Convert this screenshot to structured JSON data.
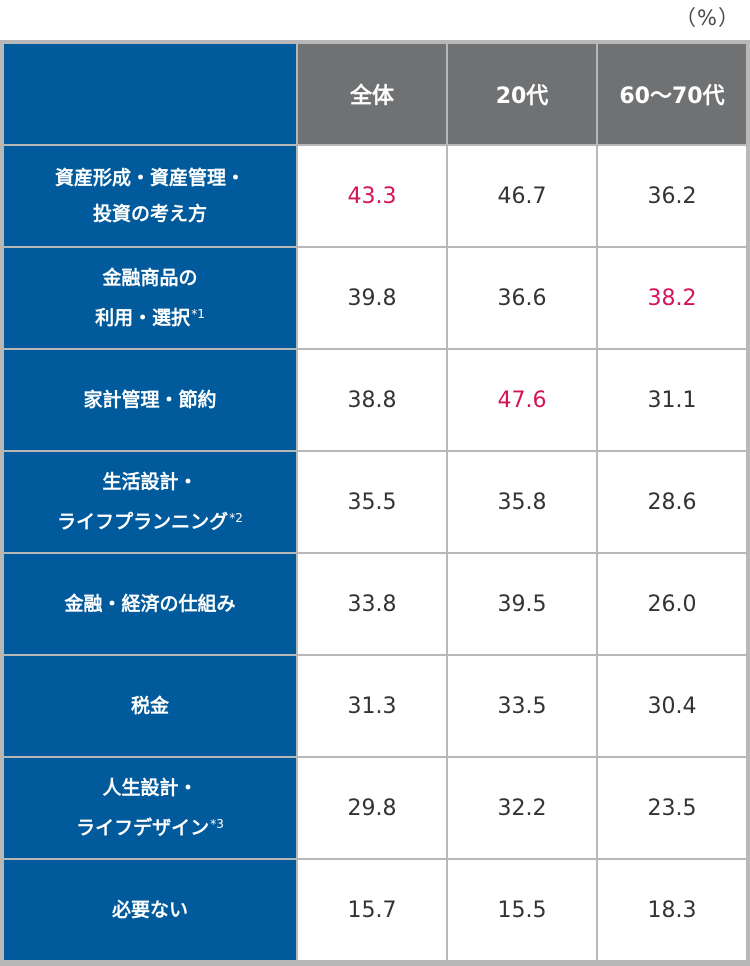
{
  "unit_label": "（%）",
  "colors": {
    "label_bg": "#005a9c",
    "header_bg": "#6f7173",
    "highlight": "#d4145a",
    "text": "#333333"
  },
  "chart_data": {
    "type": "table",
    "columns": [
      "全体",
      "20代",
      "60〜70代"
    ],
    "rows": [
      {
        "label_lines": [
          "資産形成・資産管理・",
          "投資の考え方"
        ],
        "note": "",
        "values": [
          "43.3",
          "46.7",
          "36.2"
        ],
        "highlight": [
          0
        ]
      },
      {
        "label_lines": [
          "金融商品の",
          "利用・選択"
        ],
        "note": "*1",
        "values": [
          "39.8",
          "36.6",
          "38.2"
        ],
        "highlight": [
          2
        ]
      },
      {
        "label_lines": [
          "家計管理・節約"
        ],
        "note": "",
        "values": [
          "38.8",
          "47.6",
          "31.1"
        ],
        "highlight": [
          1
        ]
      },
      {
        "label_lines": [
          "生活設計・",
          "ライフプランニング"
        ],
        "note": "*2",
        "values": [
          "35.5",
          "35.8",
          "28.6"
        ],
        "highlight": []
      },
      {
        "label_lines": [
          "金融・経済の仕組み"
        ],
        "note": "",
        "values": [
          "33.8",
          "39.5",
          "26.0"
        ],
        "highlight": []
      },
      {
        "label_lines": [
          "税金"
        ],
        "note": "",
        "values": [
          "31.3",
          "33.5",
          "30.4"
        ],
        "highlight": []
      },
      {
        "label_lines": [
          "人生設計・",
          "ライフデザイン"
        ],
        "note": "*3",
        "values": [
          "29.8",
          "32.2",
          "23.5"
        ],
        "highlight": []
      },
      {
        "label_lines": [
          "必要ない"
        ],
        "note": "",
        "values": [
          "15.7",
          "15.5",
          "18.3"
        ],
        "highlight": []
      }
    ]
  }
}
